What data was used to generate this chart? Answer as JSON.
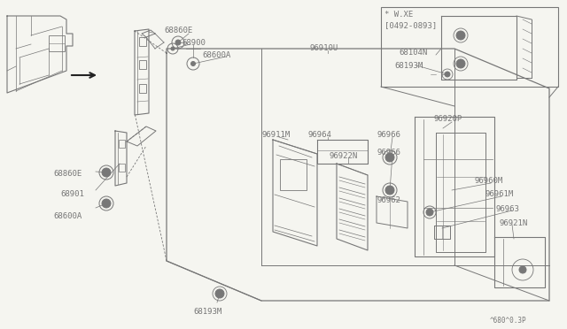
{
  "bg_color": "#f5f5f0",
  "line_color": "#777777",
  "text_color": "#777777",
  "dark_color": "#555555",
  "fig_w": 6.4,
  "fig_h": 3.72,
  "dpi": 100,
  "xlim": [
    0,
    640
  ],
  "ylim": [
    0,
    372
  ]
}
